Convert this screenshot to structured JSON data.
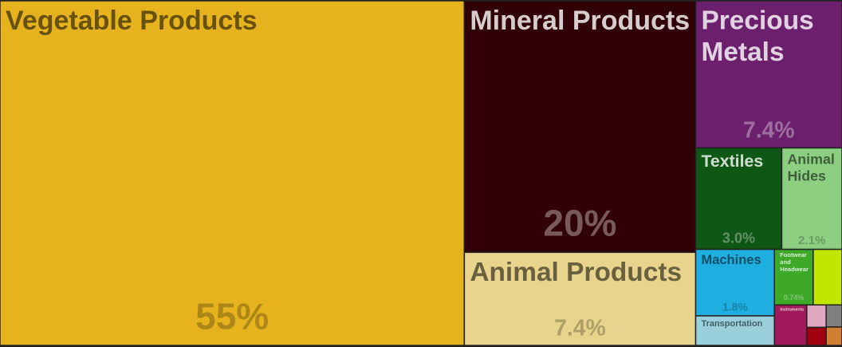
{
  "chart_data": {
    "type": "treemap",
    "categories": [
      "Vegetable Products",
      "Mineral Products",
      "Precious Metals",
      "Animal Products",
      "Textiles",
      "Animal Hides",
      "Machines",
      "Transportation",
      "Footwear and Headwear",
      "Instruments",
      null,
      null,
      null,
      null,
      null
    ],
    "values": [
      55,
      20,
      7.4,
      7.4,
      3.0,
      2.1,
      1.8,
      0.8,
      0.74,
      0.45,
      0.55,
      0.15,
      0.12,
      0.12,
      0.1
    ],
    "value_labels": [
      "55%",
      "20%",
      "7.4%",
      "7.4%",
      "3.0%",
      "2.1%",
      "1.8%",
      null,
      "0.74%",
      null,
      null,
      null,
      null,
      null,
      null
    ],
    "colors": [
      "#e6b31e",
      "#300006",
      "#6b1f6d",
      "#e8d48c",
      "#0f5714",
      "#8ccf81",
      "#1eaee0",
      "#9acfdc",
      "#3ea829",
      "#a0195a",
      "#c2e600",
      "#e0a8c0",
      "#808080",
      "#a00010",
      "#d08030"
    ]
  }
}
